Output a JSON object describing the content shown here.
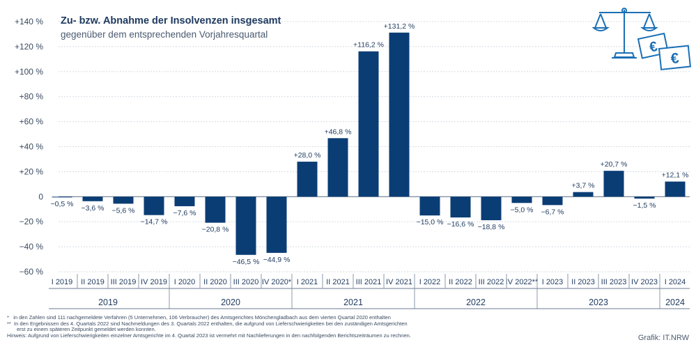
{
  "chart_data": {
    "type": "bar",
    "title": "Zu- bzw. Abnahme der Insolvenzen insgesamt",
    "subtitle": "gegenüber dem entsprechenden Vorjahresquartal",
    "ylim": [
      -60,
      140
    ],
    "yticks": [
      -60,
      -40,
      -20,
      0,
      20,
      40,
      60,
      80,
      100,
      120,
      140
    ],
    "ytick_labels": [
      "−60 %",
      "−40 %",
      "−20 %",
      "0",
      "+20 %",
      "+40 %",
      "+60 %",
      "+80 %",
      "+100 %",
      "+120 %",
      "+140 %"
    ],
    "categories": [
      "I 2019",
      "II 2019",
      "III 2019",
      "IV 2019",
      "I 2020",
      "II 2020",
      "III 2020",
      "IV 2020*",
      "I 2021",
      "II 2021",
      "III 2021",
      "IV 2021",
      "I 2022",
      "II 2022",
      "III 2022",
      "IV 2022**",
      "I 2023",
      "II 2023",
      "III 2023",
      "IV 2023",
      "I 2024"
    ],
    "values": [
      -0.5,
      -3.6,
      -5.6,
      -14.7,
      -7.6,
      -20.8,
      -46.5,
      -44.9,
      28.0,
      46.8,
      116.2,
      131.2,
      -15.0,
      -16.6,
      -18.8,
      -5.0,
      -6.7,
      3.7,
      20.7,
      -1.5,
      12.1
    ],
    "value_labels": [
      "−0,5 %",
      "−3,6 %",
      "−5,6 %",
      "−14,7 %",
      "−7,6 %",
      "−20,8 %",
      "−46,5 %",
      "−44,9 %",
      "+28,0 %",
      "+46,8 %",
      "+116,2 %",
      "+131,2 %",
      "−15,0 %",
      "−16,6 %",
      "−18,8 %",
      "−5,0 %",
      "−6,7 %",
      "+3,7 %",
      "+20,7 %",
      "−1,5 %",
      "+12,1 %"
    ],
    "years": [
      {
        "label": "2019",
        "quarters": 4
      },
      {
        "label": "2020",
        "quarters": 4
      },
      {
        "label": "2021",
        "quarters": 4
      },
      {
        "label": "2022",
        "quarters": 4
      },
      {
        "label": "2023",
        "quarters": 4
      },
      {
        "label": "2024",
        "quarters": 1
      }
    ],
    "grid": true,
    "bar_color": "#0b3d75"
  },
  "footnotes": {
    "star_mark": "*",
    "star_text": "in den Zahlen sind 111 nachgemeldete Verfahren (5 Unternehmen, 106 Verbraucher) des Amtsgerichtes Mönchengladbach aus dem vierten Quartal 2020 enthalten",
    "dstar_mark": "**",
    "dstar_text": "In den Ergebnissen des 4. Quartals 2022 sind Nachmeldungen des 3. Quartals 2022 enthalten, die aufgrund von Lieferschwierigkeiten bei den zuständigen Amtsgerichten",
    "dstar_text2": "erst zu einem späteren Zeitpunkt gemeldet werden konnten.",
    "hint": "Hinweis: Aufgrund von Lieferschwierigkeiten einzelner Amtsgerichte im 4. Quartal 2023 ist vermehrt mit Nachlieferungen in den nachfolgenden Berichtszeiträumen zu rechnen."
  },
  "source": "Grafik: IT.NRW",
  "logo": {
    "icon": "scale-euro-icon",
    "symbol": "€",
    "color": "#1a6fb5"
  }
}
